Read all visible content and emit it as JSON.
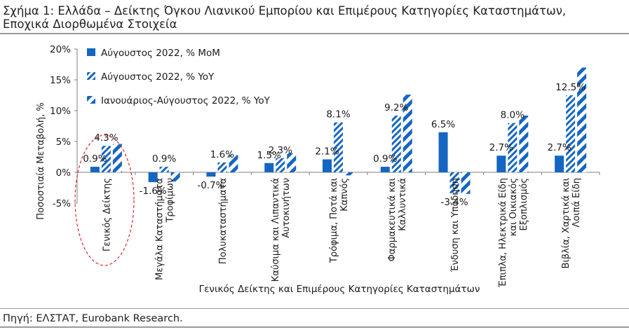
{
  "title_line1": "Σχήμα 1: Ελλάδα – Δείκτης Όγκου Λιανικού Εμπορίου και Επιμέρους Κατηγορίες Καταστημάτων,",
  "title_line2": "Εποχικά Διορθωμένα Στοιχεία",
  "source": "Πηγή: ΕΛΣΤΑΤ, Eurobank Research.",
  "colors": {
    "primary": "#1566c0",
    "hatch_bg": "#ffffff",
    "highlight": "#e0232a"
  },
  "chart_data": {
    "type": "bar",
    "xlabel": "Γενικός Δείκτης και Επιμέρους Κατηγορίες Καταστημάτων",
    "ylabel": "Ποσοστιαία Μεταβολή, %",
    "ylim": [
      -5,
      20
    ],
    "yticks": [
      "-5%",
      "0%",
      "5%",
      "10%",
      "15%",
      "20%"
    ],
    "ytick_values": [
      -5,
      0,
      5,
      10,
      15,
      20
    ],
    "legend_position": "top-left",
    "categories": [
      [
        "Γενικός Δείκτης"
      ],
      [
        "Μεγάλα Καταστήματα",
        "Τροφίμων"
      ],
      [
        "Πολυκαταστήματα"
      ],
      [
        "Καύσιμα και Λιπαντικά",
        "Αυτοκινήτων"
      ],
      [
        "Τρόφιμα, Ποτά και",
        "Καπνός"
      ],
      [
        "Φαρμακευτικά και",
        "Καλλυντικά"
      ],
      [
        "Ένδυση και Υπόδηση"
      ],
      [
        "Έπιπλα, Ηλεκτρικά Είδη",
        "και Οικιακός",
        "Εξοπλισμός"
      ],
      [
        "Βιβλία, Χαρτικά και",
        "Λοιπά Είδη"
      ]
    ],
    "series": [
      {
        "name": "Αύγουστος 2022, % MoM",
        "style": "solid",
        "values": [
          0.9,
          -1.6,
          -0.7,
          1.5,
          2.1,
          0.9,
          6.5,
          2.7,
          2.7
        ],
        "labels": [
          "0.9%",
          "-1.6%",
          "-0.7%",
          "1.5%",
          "2.1%",
          "0.9%",
          "6.5%",
          "2.7%",
          "2.7%"
        ]
      },
      {
        "name": "Αύγουστος 2022, % YoY",
        "style": "dense-hatch",
        "values": [
          4.3,
          0.9,
          1.6,
          2.3,
          8.1,
          9.2,
          -3.4,
          8.0,
          12.5
        ],
        "labels": [
          "4.3%",
          "0.9%",
          "1.6%",
          "2.3%",
          "8.1%",
          "9.2%",
          "-3.4%",
          "8.0%",
          "12.5%"
        ]
      },
      {
        "name": "Ιανουάριος-Αύγουστος 2022, % YoY",
        "style": "wide-hatch",
        "values": [
          4.6,
          -1.5,
          2.8,
          3.1,
          -0.5,
          12.6,
          -3.5,
          9.2,
          17.0
        ],
        "labels": null
      }
    ],
    "annotation": "dashed red ellipse highlighting Γενικός Δείκτης"
  }
}
